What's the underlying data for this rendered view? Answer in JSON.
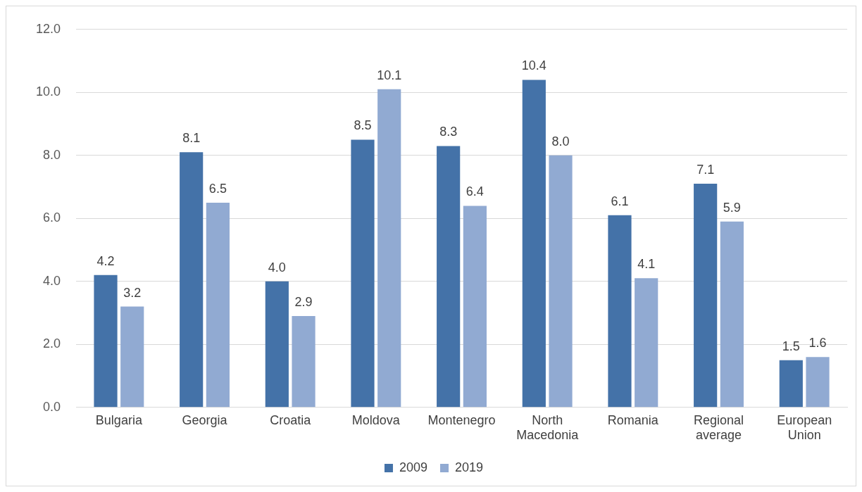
{
  "chart_data": {
    "type": "bar",
    "categories": [
      "Bulgaria",
      "Georgia",
      "Croatia",
      "Moldova",
      "Montenegro",
      "North Macedonia",
      "Romania",
      "Regional average",
      "European Union"
    ],
    "series": [
      {
        "name": "2009",
        "color": "#4472a8",
        "values": [
          4.2,
          8.1,
          4.0,
          8.5,
          8.3,
          10.4,
          6.1,
          7.1,
          1.5
        ],
        "value_labels": [
          "4.2",
          "8.1",
          "4.0",
          "8.5",
          "8.3",
          "10.4",
          "6.1",
          "7.1",
          "1.5"
        ]
      },
      {
        "name": "2019",
        "color": "#91aad2",
        "values": [
          3.2,
          6.5,
          2.9,
          10.1,
          6.4,
          8.0,
          4.1,
          5.9,
          1.6
        ],
        "value_labels": [
          "3.2",
          "6.5",
          "2.9",
          "10.1",
          "6.4",
          "8.0",
          "4.1",
          "5.9",
          "1.6"
        ]
      }
    ],
    "ylim": [
      0,
      12
    ],
    "yticks": [
      {
        "value": 0,
        "label": "0.0"
      },
      {
        "value": 2,
        "label": "2.0"
      },
      {
        "value": 4,
        "label": "4.0"
      },
      {
        "value": 6,
        "label": "6.0"
      },
      {
        "value": 8,
        "label": "8.0"
      },
      {
        "value": 10,
        "label": "10.0"
      },
      {
        "value": 12,
        "label": "12.0"
      }
    ],
    "grid": "y",
    "legend": "bottom"
  }
}
